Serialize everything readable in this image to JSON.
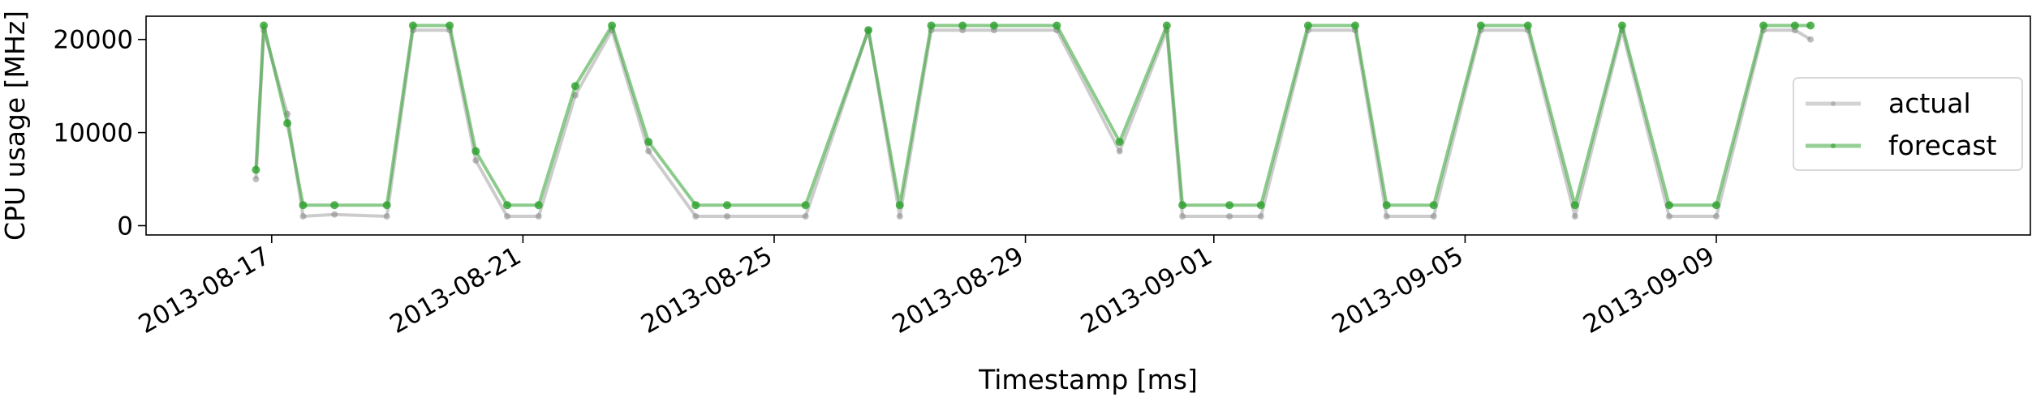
{
  "chart_data": {
    "type": "line",
    "xlabel": "Timestamp [ms]",
    "ylabel": "CPU usage [MHz]",
    "x_axis_kind": "date",
    "xlim": [
      "2013-08-15",
      "2013-09-14"
    ],
    "ylim": [
      -1000,
      22500
    ],
    "y_ticks": [
      0,
      10000,
      20000
    ],
    "x_ticks": [
      "2013-08-17",
      "2013-08-21",
      "2013-08-25",
      "2013-08-29",
      "2013-09-01",
      "2013-09-05",
      "2013-09-09"
    ],
    "grid": false,
    "legend_position": "center-right",
    "series": [
      {
        "name": "actual",
        "color": "#808080",
        "x": [
          "2013-08-16T18:00",
          "2013-08-16T21:00",
          "2013-08-17T06:00",
          "2013-08-17T12:00",
          "2013-08-18T00:00",
          "2013-08-18T20:00",
          "2013-08-19T06:00",
          "2013-08-19T20:00",
          "2013-08-20T06:00",
          "2013-08-20T18:00",
          "2013-08-21T06:00",
          "2013-08-21T20:00",
          "2013-08-22T10:00",
          "2013-08-23T00:00",
          "2013-08-23T18:00",
          "2013-08-24T06:00",
          "2013-08-25T12:00",
          "2013-08-26T12:00",
          "2013-08-27T00:00",
          "2013-08-27T12:00",
          "2013-08-28T00:00",
          "2013-08-28T12:00",
          "2013-08-29T12:00",
          "2013-08-30T12:00",
          "2013-08-31T06:00",
          "2013-08-31T12:00",
          "2013-09-01T06:00",
          "2013-09-01T18:00",
          "2013-09-02T12:00",
          "2013-09-03T06:00",
          "2013-09-03T18:00",
          "2013-09-04T12:00",
          "2013-09-05T06:00",
          "2013-09-06T00:00",
          "2013-09-06T18:00",
          "2013-09-07T12:00",
          "2013-09-08T06:00",
          "2013-09-09T00:00",
          "2013-09-09T18:00",
          "2013-09-10T06:00",
          "2013-09-10T12:00"
        ],
        "y": [
          5000,
          21000,
          12000,
          1000,
          1200,
          1000,
          21000,
          21000,
          7000,
          1000,
          1000,
          14000,
          21000,
          8000,
          1000,
          1000,
          1000,
          21000,
          1000,
          21000,
          21000,
          21000,
          21000,
          8000,
          21000,
          1000,
          1000,
          1000,
          21000,
          21000,
          1000,
          1000,
          21000,
          21000,
          1000,
          21000,
          1000,
          1000,
          21000,
          21000,
          20000
        ]
      },
      {
        "name": "forecast",
        "color": "#2ca02c",
        "x": [
          "2013-08-16T18:00",
          "2013-08-16T21:00",
          "2013-08-17T06:00",
          "2013-08-17T12:00",
          "2013-08-18T00:00",
          "2013-08-18T20:00",
          "2013-08-19T06:00",
          "2013-08-19T20:00",
          "2013-08-20T06:00",
          "2013-08-20T18:00",
          "2013-08-21T06:00",
          "2013-08-21T20:00",
          "2013-08-22T10:00",
          "2013-08-23T00:00",
          "2013-08-23T18:00",
          "2013-08-24T06:00",
          "2013-08-25T12:00",
          "2013-08-26T12:00",
          "2013-08-27T00:00",
          "2013-08-27T12:00",
          "2013-08-28T00:00",
          "2013-08-28T12:00",
          "2013-08-29T12:00",
          "2013-08-30T12:00",
          "2013-08-31T06:00",
          "2013-08-31T12:00",
          "2013-09-01T06:00",
          "2013-09-01T18:00",
          "2013-09-02T12:00",
          "2013-09-03T06:00",
          "2013-09-03T18:00",
          "2013-09-04T12:00",
          "2013-09-05T06:00",
          "2013-09-06T00:00",
          "2013-09-06T18:00",
          "2013-09-07T12:00",
          "2013-09-08T06:00",
          "2013-09-09T00:00",
          "2013-09-09T18:00",
          "2013-09-10T06:00",
          "2013-09-10T12:00"
        ],
        "y": [
          6000,
          21500,
          11000,
          2200,
          2200,
          2200,
          21500,
          21500,
          8000,
          2200,
          2200,
          15000,
          21500,
          9000,
          2200,
          2200,
          2200,
          21000,
          2200,
          21500,
          21500,
          21500,
          21500,
          9000,
          21500,
          2200,
          2200,
          2200,
          21500,
          21500,
          2200,
          2200,
          21500,
          21500,
          2200,
          21500,
          2200,
          2200,
          21500,
          21500,
          21500
        ]
      }
    ]
  }
}
